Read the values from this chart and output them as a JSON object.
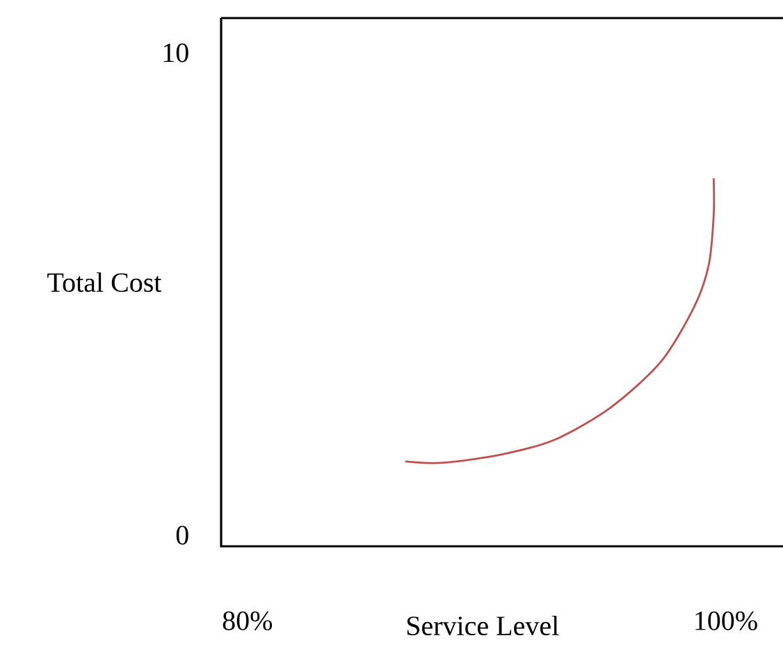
{
  "chart_data": {
    "type": "line",
    "xlabel": "Service Level",
    "ylabel": "Total Cost",
    "xlim": [
      78.9,
      102.4
    ],
    "ylim": [
      -0.23,
      10.72
    ],
    "xticks": [
      {
        "value": 80,
        "label": "80%"
      },
      {
        "value": 100,
        "label": "100%"
      }
    ],
    "yticks": [
      0,
      10
    ],
    "series": [
      {
        "color": "#c0504d",
        "x": [
          86.6,
          88.1,
          90.6,
          92.9,
          95.2,
          97.3,
          98.7,
          99.3,
          99.5,
          99.5
        ],
        "values": [
          1.53,
          1.5,
          1.67,
          1.99,
          2.65,
          3.6,
          4.75,
          5.62,
          6.63,
          7.4
        ]
      }
    ]
  }
}
